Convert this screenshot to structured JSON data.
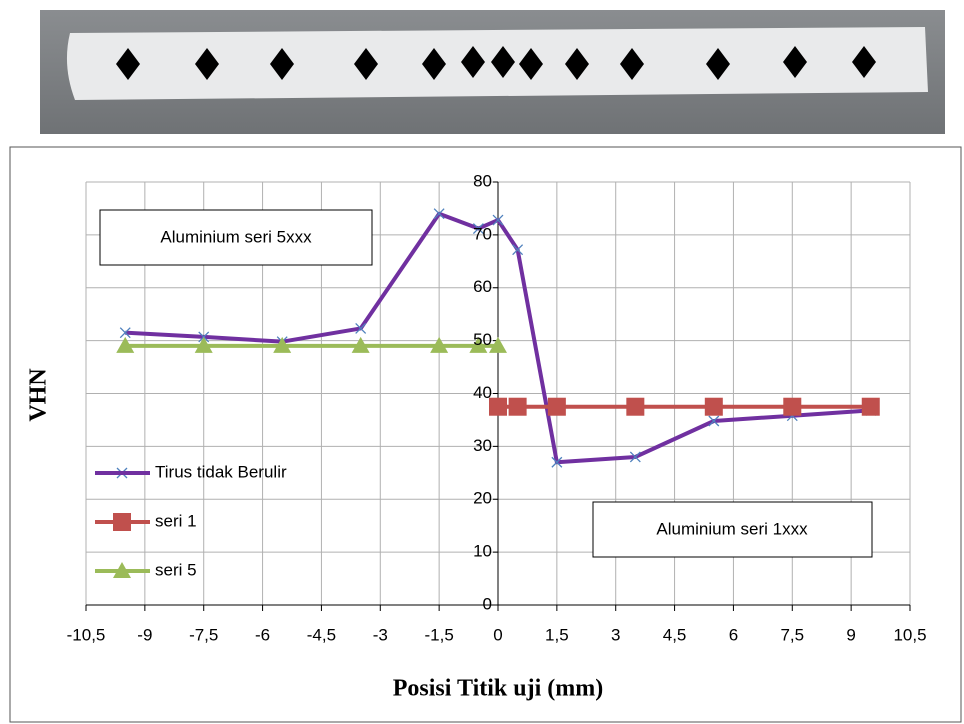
{
  "chart_data": {
    "type": "line",
    "x_label": "Posisi Titik uji (mm)",
    "y_label": "VHN",
    "annotations": [
      "Aluminium seri 5xxx",
      "Aluminium seri 1xxx"
    ],
    "xlim": [
      -10.5,
      10.5
    ],
    "xticks": [
      {
        "value": -10.5,
        "label": "-10,5"
      },
      -9,
      {
        "value": -7.5,
        "label": "-7,5"
      },
      -6,
      {
        "value": -4.5,
        "label": "-4,5"
      },
      -3,
      {
        "value": -1.5,
        "label": "-1,5"
      },
      0,
      {
        "value": 1.5,
        "label": "1,5"
      },
      3,
      {
        "value": 4.5,
        "label": "4,5"
      },
      6,
      {
        "value": 7.5,
        "label": "7,5"
      },
      9,
      {
        "value": 10.5,
        "label": "10,5"
      }
    ],
    "ylim": [
      0,
      80
    ],
    "yticks": [
      0,
      10,
      20,
      30,
      40,
      50,
      60,
      70,
      80
    ],
    "grid": true,
    "series": [
      {
        "name": "Tirus tidak Berulir",
        "color": "#7030a0",
        "marker": "x",
        "x": [
          -9.5,
          -7.5,
          -5.5,
          -3.5,
          -1.5,
          -0.5,
          0,
          0.5,
          1.5,
          3.5,
          5.5,
          7.5,
          9.5
        ],
        "values": [
          51.5,
          50.7,
          49.8,
          52.3,
          74,
          71.2,
          72.8,
          67.2,
          27,
          28,
          34.8,
          35.8,
          36.8
        ]
      },
      {
        "name": "seri 1",
        "color": "#c0504d",
        "marker": "square",
        "x": [
          0,
          0.5,
          1.5,
          3.5,
          5.5,
          7.5,
          9.5
        ],
        "values": [
          37.5,
          37.5,
          37.5,
          37.5,
          37.5,
          37.5,
          37.5
        ]
      },
      {
        "name": "seri 5",
        "color": "#9bbb59",
        "marker": "triangle",
        "x": [
          -9.5,
          -7.5,
          -5.5,
          -3.5,
          -1.5,
          -0.5,
          0
        ],
        "values": [
          49,
          49,
          49,
          49,
          49,
          49,
          49
        ]
      }
    ]
  }
}
